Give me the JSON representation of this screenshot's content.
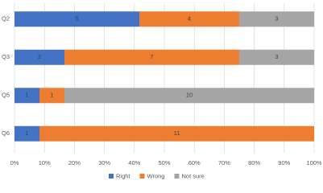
{
  "chart_data": {
    "type": "stacked-bar-horizontal",
    "stacking": "percent",
    "categories": [
      "Q2",
      "Q3",
      "Q5",
      "Q6"
    ],
    "series": [
      {
        "name": "Right",
        "color": "#4472c4",
        "values": [
          5,
          2,
          1,
          1
        ]
      },
      {
        "name": "Wrong",
        "color": "#ed7d31",
        "values": [
          4,
          7,
          1,
          11
        ]
      },
      {
        "name": "Not sure",
        "color": "#a5a5a5",
        "values": [
          3,
          3,
          10,
          0
        ]
      }
    ],
    "xlim": [
      0,
      100
    ],
    "xticks": [
      {
        "value": 0,
        "label": "0%"
      },
      {
        "value": 10,
        "label": "10%"
      },
      {
        "value": 20,
        "label": "20%"
      },
      {
        "value": 30,
        "label": "30%"
      },
      {
        "value": 40,
        "label": "40%"
      },
      {
        "value": 50,
        "label": "50%"
      },
      {
        "value": 60,
        "label": "60%"
      },
      {
        "value": 70,
        "label": "70%"
      },
      {
        "value": 80,
        "label": "80%"
      },
      {
        "value": 90,
        "label": "90%"
      },
      {
        "value": 100,
        "label": "100%"
      }
    ],
    "grid": true,
    "legend": "bottom"
  }
}
